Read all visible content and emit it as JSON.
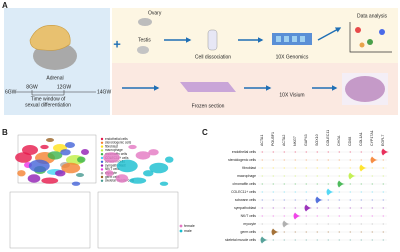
{
  "panel_a": {
    "label": "A",
    "adrenal": "Adrenal",
    "plus": "+",
    "ovary": "Ovary",
    "testis": "Testis",
    "steps_top": [
      "Cell dissociation",
      "10X Genomics",
      "Data analysis"
    ],
    "steps_bottom": [
      "Frozen section",
      "10X Visium"
    ],
    "weeks": [
      "6GW",
      "8GW",
      "12GW",
      "14GW"
    ],
    "window_label": [
      "Time window of",
      "sexual differentiation"
    ]
  },
  "panel_b": {
    "label": "B",
    "cell_types": [
      "endothelial cells",
      "steroidogenic cells",
      "fibroblast",
      "macrophage",
      "chromaffin cells",
      "COLEC11+ cells",
      "schwann cells",
      "sympathoblast",
      "NK/T cells",
      "myocyte",
      "germ cells",
      "skeletal muscle cells"
    ],
    "sex_legend": [
      "female",
      "male"
    ]
  },
  "panel_c": {
    "label": "C",
    "genes": [
      "ACTA1",
      "POU5F1",
      "ACTA2",
      "NKG7",
      "GAP43",
      "SOX10",
      "COLEC11",
      "CHGA",
      "CD68",
      "COL1A1",
      "CYP17A1",
      "EGFL7"
    ],
    "cell_types": [
      "endothelial cells",
      "steroidogenic cells",
      "fibroblast",
      "macrophage",
      "chromaffin cells",
      "COLEC11+ cells",
      "schwann cells",
      "sympathoblast",
      "NK/T cells",
      "myocyte",
      "germ cells",
      "skeletal muscle cells"
    ]
  }
}
